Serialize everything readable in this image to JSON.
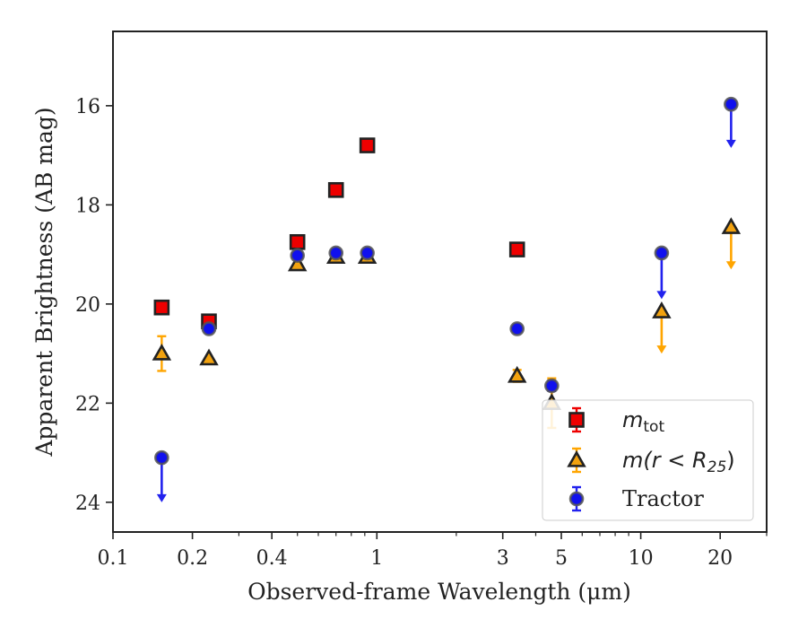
{
  "chart_data": {
    "type": "scatter",
    "title": "",
    "xlabel": "Observed-frame Wavelength (μm)",
    "ylabel": "Apparent Brightness (AB mag)",
    "x_scale": "log",
    "xlim": [
      0.1,
      30
    ],
    "ylim": [
      24.6,
      14.5
    ],
    "y_inverted": true,
    "grid": false,
    "legend_position": "lower-right",
    "x_ticks": [
      {
        "value": 0.1,
        "label": "0.1"
      },
      {
        "value": 0.2,
        "label": "0.2"
      },
      {
        "value": 0.4,
        "label": "0.4"
      },
      {
        "value": 1,
        "label": "1"
      },
      {
        "value": 3,
        "label": "3"
      },
      {
        "value": 5,
        "label": "5"
      },
      {
        "value": 10,
        "label": "10"
      },
      {
        "value": 20,
        "label": "20"
      }
    ],
    "y_ticks": [
      {
        "value": 16,
        "label": "16"
      },
      {
        "value": 18,
        "label": "18"
      },
      {
        "value": 20,
        "label": "20"
      },
      {
        "value": 22,
        "label": "22"
      },
      {
        "value": 24,
        "label": "24"
      }
    ],
    "series": [
      {
        "name": "m_tot",
        "legend_text": "m",
        "legend_subscript": "tot",
        "marker": "square",
        "fill_color": "#ee0000",
        "error_color": "#ee0000",
        "edge_color": "#222222",
        "points": [
          {
            "x": 0.153,
            "y": 20.07,
            "err": 0.0,
            "upper_limit": false
          },
          {
            "x": 0.231,
            "y": 20.35,
            "err": 0.0,
            "upper_limit": false
          },
          {
            "x": 0.5,
            "y": 18.75,
            "err": 0.0,
            "upper_limit": false
          },
          {
            "x": 0.7,
            "y": 17.7,
            "err": 0.0,
            "upper_limit": false
          },
          {
            "x": 0.92,
            "y": 16.8,
            "err": 0.0,
            "upper_limit": false
          },
          {
            "x": 3.4,
            "y": 18.9,
            "err": 0.0,
            "upper_limit": false
          }
        ]
      },
      {
        "name": "m(r < R_25)",
        "legend_text": "m(r < R",
        "legend_subscript": "25",
        "legend_suffix": ")",
        "marker": "triangle",
        "fill_color": "#f2a20f",
        "error_color": "#ffa500",
        "edge_color": "#222222",
        "points": [
          {
            "x": 0.153,
            "y": 21.0,
            "err": 0.35,
            "upper_limit": false
          },
          {
            "x": 0.231,
            "y": 21.1,
            "err": 0.0,
            "upper_limit": false
          },
          {
            "x": 0.5,
            "y": 19.2,
            "err": 0.0,
            "upper_limit": false
          },
          {
            "x": 0.7,
            "y": 19.05,
            "err": 0.0,
            "upper_limit": false
          },
          {
            "x": 0.92,
            "y": 19.05,
            "err": 0.0,
            "upper_limit": false
          },
          {
            "x": 3.4,
            "y": 21.45,
            "err": 0.12,
            "upper_limit": false
          },
          {
            "x": 4.6,
            "y": 22.0,
            "err": 0.5,
            "upper_limit": false
          },
          {
            "x": 12.0,
            "y": 20.15,
            "err": 0.0,
            "upper_limit": true,
            "arrow_to": 21.0
          },
          {
            "x": 22.0,
            "y": 18.45,
            "err": 0.0,
            "upper_limit": true,
            "arrow_to": 19.3
          }
        ]
      },
      {
        "name": "Tractor",
        "legend_text": "Tractor",
        "marker": "circle",
        "fill_color": "#1010ee",
        "error_color": "#2222ee",
        "edge_color": "#555555",
        "points": [
          {
            "x": 0.153,
            "y": 23.1,
            "err": 0.0,
            "upper_limit": true,
            "arrow_to": 24.0
          },
          {
            "x": 0.231,
            "y": 20.5,
            "err": 0.0,
            "upper_limit": false
          },
          {
            "x": 0.5,
            "y": 19.02,
            "err": 0.0,
            "upper_limit": false
          },
          {
            "x": 0.7,
            "y": 18.97,
            "err": 0.0,
            "upper_limit": false
          },
          {
            "x": 0.92,
            "y": 18.97,
            "err": 0.0,
            "upper_limit": false
          },
          {
            "x": 3.4,
            "y": 20.5,
            "err": 0.0,
            "upper_limit": false
          },
          {
            "x": 4.6,
            "y": 21.65,
            "err": 0.1,
            "upper_limit": false
          },
          {
            "x": 12.0,
            "y": 18.97,
            "err": 0.0,
            "upper_limit": true,
            "arrow_to": 19.9
          },
          {
            "x": 22.0,
            "y": 15.97,
            "err": 0.0,
            "upper_limit": true,
            "arrow_to": 16.85
          }
        ]
      }
    ]
  }
}
